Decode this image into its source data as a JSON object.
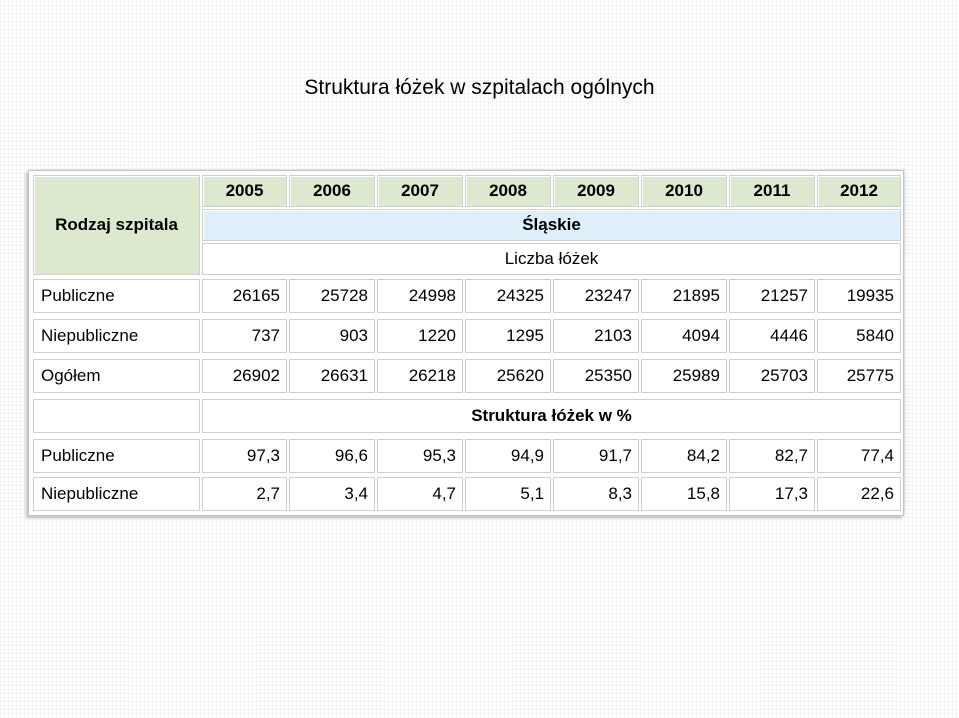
{
  "page": {
    "title": "Struktura łóżek w szpitalach ogólnych"
  },
  "table": {
    "row_header": "Rodzaj szpitala",
    "years": [
      "2005",
      "2006",
      "2007",
      "2008",
      "2009",
      "2010",
      "2011",
      "2012"
    ],
    "region": "Śląskie",
    "section_beds": "Liczba łóżek",
    "beds_rows": [
      {
        "label": "Publiczne",
        "values": [
          "26165",
          "25728",
          "24998",
          "24325",
          "23247",
          "21895",
          "21257",
          "19935"
        ]
      },
      {
        "label": "Niepubliczne",
        "values": [
          "737",
          "903",
          "1220",
          "1295",
          "2103",
          "4094",
          "4446",
          "5840"
        ]
      },
      {
        "label": "Ogółem",
        "values": [
          "26902",
          "26631",
          "26218",
          "25620",
          "25350",
          "25989",
          "25703",
          "25775"
        ]
      }
    ],
    "section_percent": "Struktura łóżek w %",
    "percent_rows": [
      {
        "label": "Publiczne",
        "values": [
          "97,3",
          "96,6",
          "95,3",
          "94,9",
          "91,7",
          "84,2",
          "82,7",
          "77,4"
        ]
      },
      {
        "label": "Niepubliczne",
        "values": [
          "2,7",
          "3,4",
          "4,7",
          "5,1",
          "8,3",
          "15,8",
          "17,3",
          "22,6"
        ]
      }
    ]
  },
  "colors": {
    "header_fill": "#dde9cf",
    "region_fill": "#dff0fb",
    "border": "#cfcfcf"
  }
}
